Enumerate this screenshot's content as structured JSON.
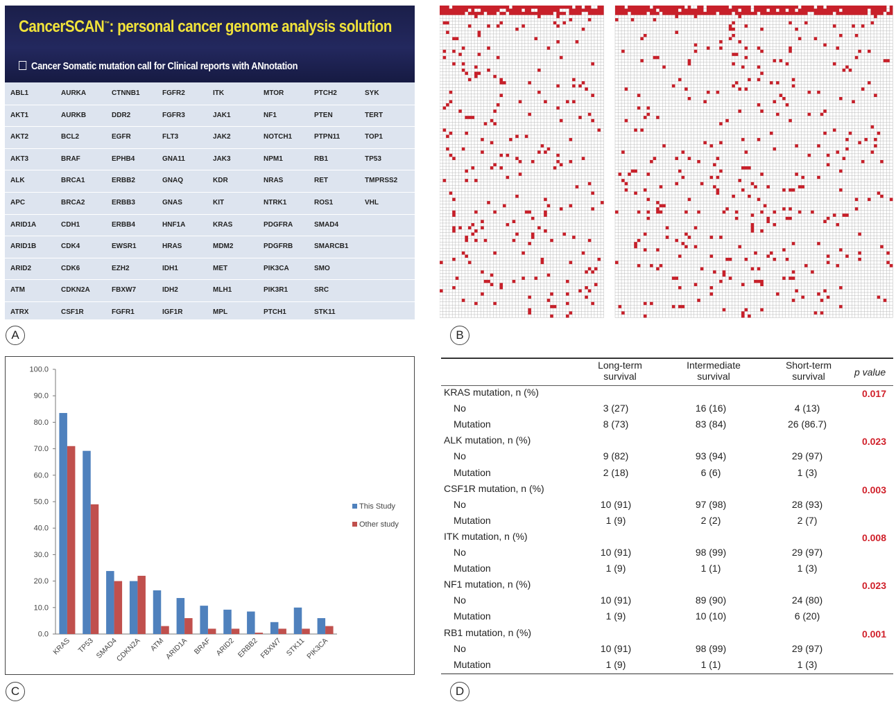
{
  "panel_labels": {
    "a": "A",
    "b": "B",
    "c": "C",
    "d": "D"
  },
  "panel_a": {
    "title": "CancerSCAN",
    "title_tm": "™",
    "title_rest": ": personal cancer genome analysis solution",
    "subtitle": "Cancer Somatic mutation call for Clinical reports with ANnotation",
    "genes": [
      [
        "ABL1",
        "AURKA",
        "CTNNB1",
        "FGFR2",
        "ITK",
        "MTOR",
        "PTCH2",
        "SYK"
      ],
      [
        "AKT1",
        "AURKB",
        "DDR2",
        "FGFR3",
        "JAK1",
        "NF1",
        "PTEN",
        "TERT"
      ],
      [
        "AKT2",
        "BCL2",
        "EGFR",
        "FLT3",
        "JAK2",
        "NOTCH1",
        "PTPN11",
        "TOP1"
      ],
      [
        "AKT3",
        "BRAF",
        "EPHB4",
        "GNA11",
        "JAK3",
        "NPM1",
        "RB1",
        "TP53"
      ],
      [
        "ALK",
        "BRCA1",
        "ERBB2",
        "GNAQ",
        "KDR",
        "NRAS",
        "RET",
        "TMPRSS2"
      ],
      [
        "APC",
        "BRCA2",
        "ERBB3",
        "GNAS",
        "KIT",
        "NTRK1",
        "ROS1",
        "VHL"
      ],
      [
        "ARID1A",
        "CDH1",
        "ERBB4",
        "HNF1A",
        "KRAS",
        "PDGFRA",
        "SMAD4",
        ""
      ],
      [
        "ARID1B",
        "CDK4",
        "EWSR1",
        "HRAS",
        "MDM2",
        "PDGFRB",
        "SMARCB1",
        ""
      ],
      [
        "ARID2",
        "CDK6",
        "EZH2",
        "IDH1",
        "MET",
        "PIK3CA",
        "SMO",
        ""
      ],
      [
        "ATM",
        "CDKN2A",
        "FBXW7",
        "IDH2",
        "MLH1",
        "PIK3R1",
        "SRC",
        ""
      ],
      [
        "ATRX",
        "CSF1R",
        "FGFR1",
        "IGF1R",
        "MPL",
        "PTCH1",
        "STK11",
        ""
      ]
    ]
  },
  "panel_b": {
    "colors": {
      "mutation": "#c8202a",
      "grid": "#b9b9b9",
      "background": "#ffffff"
    }
  },
  "chart_data": {
    "type": "bar",
    "categories": [
      "KRAS",
      "TP53",
      "SMAD4",
      "CDKN2A",
      "ATM",
      "ARID1A",
      "BRAF",
      "ARID2",
      "ERBB2",
      "FBXW7",
      "STK11",
      "PIK3CA"
    ],
    "series": [
      {
        "name": "This Study",
        "color": "#4f81bd",
        "values": [
          83.5,
          69.2,
          23.8,
          20.0,
          16.5,
          13.6,
          10.7,
          9.2,
          8.5,
          4.5,
          10.0,
          6.0
        ]
      },
      {
        "name": "Other study",
        "color": "#c0504d",
        "values": [
          71.0,
          49.0,
          20.0,
          22.0,
          3.0,
          6.0,
          2.0,
          2.0,
          0.5,
          2.0,
          2.0,
          3.0
        ]
      }
    ],
    "yticks": [
      "0.0",
      "10.0",
      "20.0",
      "30.0",
      "40.0",
      "50.0",
      "60.0",
      "70.0",
      "80.0",
      "90.0",
      "100.0"
    ],
    "ylim": [
      0,
      100
    ],
    "grid": false,
    "legend": "right"
  },
  "panel_d": {
    "headers": {
      "long": [
        "Long-term",
        "survival"
      ],
      "intermediate": [
        "Intermediate",
        "survival"
      ],
      "short": [
        "Short-term",
        "survival"
      ],
      "p": "p value"
    },
    "groups": [
      {
        "label": "KRAS mutation, n (%)",
        "p": "0.017",
        "rows": [
          {
            "label": "No",
            "values": [
              "3 (27)",
              "16 (16)",
              "4 (13)"
            ]
          },
          {
            "label": "Mutation",
            "values": [
              "8 (73)",
              "83 (84)",
              "26 (86.7)"
            ]
          }
        ]
      },
      {
        "label": "ALK mutation, n (%)",
        "p": "0.023",
        "rows": [
          {
            "label": "No",
            "values": [
              "9 (82)",
              "93 (94)",
              "29 (97)"
            ]
          },
          {
            "label": "Mutation",
            "values": [
              "2 (18)",
              "6 (6)",
              "1 (3)"
            ]
          }
        ]
      },
      {
        "label": "CSF1R mutation, n (%)",
        "p": "0.003",
        "rows": [
          {
            "label": "No",
            "values": [
              "10 (91)",
              "97 (98)",
              "28 (93)"
            ]
          },
          {
            "label": "Mutation",
            "values": [
              "1 (9)",
              "2 (2)",
              "2 (7)"
            ]
          }
        ]
      },
      {
        "label": "ITK mutation, n (%)",
        "p": "0.008",
        "rows": [
          {
            "label": "No",
            "values": [
              "10 (91)",
              "98 (99)",
              "29 (97)"
            ]
          },
          {
            "label": "Mutation",
            "values": [
              "1 (9)",
              "1 (1)",
              "1 (3)"
            ]
          }
        ]
      },
      {
        "label": "NF1 mutation, n (%)",
        "p": "0.023",
        "rows": [
          {
            "label": "No",
            "values": [
              "10 (91)",
              "89 (90)",
              "24 (80)"
            ]
          },
          {
            "label": "Mutation",
            "values": [
              "1 (9)",
              "10 (10)",
              "6 (20)"
            ]
          }
        ]
      },
      {
        "label": "RB1 mutation, n (%)",
        "p": "0.001",
        "rows": [
          {
            "label": "No",
            "values": [
              "10 (91)",
              "98 (99)",
              "29 (97)"
            ]
          },
          {
            "label": "Mutation",
            "values": [
              "1 (9)",
              "1 (1)",
              "1 (3)"
            ]
          }
        ]
      }
    ]
  }
}
